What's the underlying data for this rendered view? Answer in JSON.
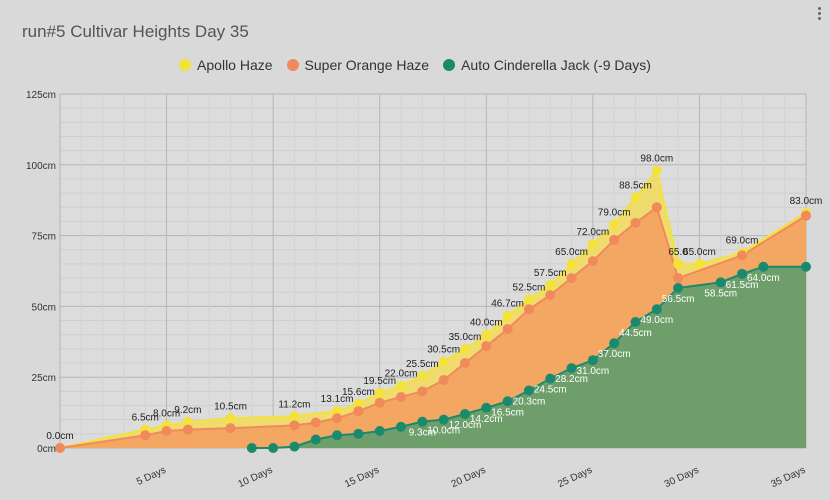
{
  "title": "run#5 Cultivar Heights Day 35",
  "chart_data": {
    "type": "area",
    "title": "run#5 Cultivar Heights Day 35",
    "xlabel": "",
    "ylabel": "",
    "xlim": [
      0,
      35
    ],
    "ylim": [
      0,
      125
    ],
    "y_ticks": [
      0,
      25,
      50,
      75,
      100,
      125
    ],
    "y_tick_labels": [
      "0cm",
      "25cm",
      "50cm",
      "75cm",
      "100cm",
      "125cm"
    ],
    "x_ticks": [
      5,
      10,
      15,
      20,
      25,
      30,
      35
    ],
    "x_tick_labels": [
      "5 Days",
      "10 Days",
      "15 Days",
      "20 Days",
      "25 Days",
      "30 Days",
      "35 Days"
    ],
    "grid": true,
    "legend_position": "top",
    "series": [
      {
        "name": "Apollo Haze",
        "color": "#f2e23a",
        "fill": "#f0dc6e",
        "x": [
          0,
          4,
          5,
          6,
          8,
          11,
          13,
          14,
          15,
          16,
          17,
          18,
          19,
          20,
          21,
          22,
          23,
          24,
          25,
          26,
          27,
          28,
          29,
          30,
          32,
          35
        ],
        "values": [
          0,
          6.5,
          8.0,
          9.2,
          10.5,
          11.2,
          13.1,
          15.6,
          19.5,
          22.0,
          25.5,
          30.5,
          35.0,
          40.0,
          46.7,
          52.5,
          57.5,
          65.0,
          72.0,
          79.0,
          88.5,
          98.0,
          65.0,
          65.0,
          69.0,
          83.0
        ],
        "labels": [
          "0.0cm",
          "6.5cm",
          "8.0cm",
          "9.2cm",
          "10.5cm",
          "11.2cm",
          "13.1cm",
          "15.6cm",
          "19.5cm",
          "22.0cm",
          "25.5cm",
          "30.5cm",
          "35.0cm",
          "40.0cm",
          "46.7cm",
          "52.5cm",
          "57.5cm",
          "65.0cm",
          "72.0cm",
          "79.0cm",
          "88.5cm",
          "98.0cm",
          "65.0",
          "65.0cm",
          "69.0cm",
          "83.0cm"
        ]
      },
      {
        "name": "Super Orange Haze",
        "color": "#f08a5d",
        "fill": "#f3a762",
        "x": [
          0,
          4,
          5,
          6,
          8,
          11,
          12,
          13,
          14,
          15,
          16,
          17,
          18,
          19,
          20,
          21,
          22,
          23,
          24,
          25,
          26,
          27,
          28,
          29,
          32,
          35
        ],
        "values": [
          0,
          4.5,
          6.0,
          6.5,
          7.0,
          8.0,
          9.0,
          10.5,
          13.0,
          16.0,
          18.0,
          20.0,
          24.0,
          30.0,
          36.0,
          42.0,
          49.0,
          54.0,
          60.0,
          66.0,
          73.5,
          79.5,
          85.0,
          60.0,
          68.0,
          82.0
        ]
      },
      {
        "name": "Auto Cinderella Jack (-9 Days)",
        "color": "#1a8a6e",
        "fill": "#6e9f6b",
        "x": [
          9,
          10,
          11,
          12,
          13,
          14,
          15,
          16,
          17,
          18,
          19,
          20,
          21,
          22,
          23,
          24,
          25,
          26,
          27,
          28,
          29,
          31,
          32,
          33,
          35
        ],
        "values": [
          0,
          0,
          0.5,
          3.0,
          4.5,
          5.0,
          6.0,
          7.5,
          9.3,
          10.0,
          12.0,
          14.2,
          16.5,
          20.3,
          24.5,
          28.2,
          31.0,
          37.0,
          44.5,
          49.0,
          56.5,
          58.5,
          61.5,
          64.0,
          64.0
        ],
        "labels": [
          "",
          "",
          "",
          "",
          "",
          "",
          "",
          "",
          "9.3cm",
          "10.0cm",
          "12.0cm",
          "14.2cm",
          "16.5cm",
          "20.3cm",
          "24.5cm",
          "28.2cm",
          "31.0cm",
          "37.0cm",
          "44.5cm",
          "49.0cm",
          "56.5cm",
          "58.5cm",
          "61.5cm",
          "64.0cm",
          ""
        ]
      }
    ]
  }
}
